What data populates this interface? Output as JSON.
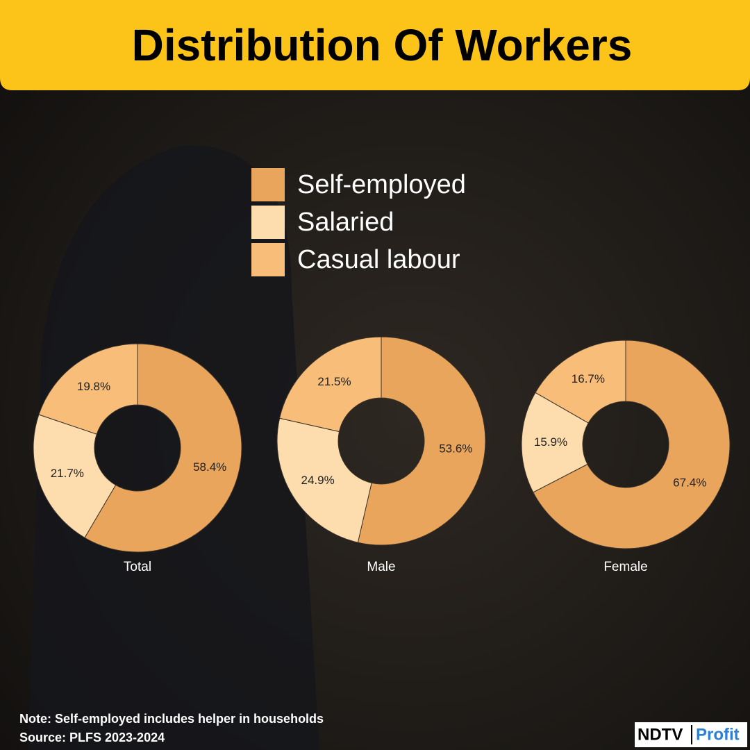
{
  "title": "Distribution Of Workers",
  "legend": [
    {
      "name": "Self-employed",
      "color": "#e9a55c"
    },
    {
      "name": "Salaried",
      "color": "#fddcae"
    },
    {
      "name": "Casual labour",
      "color": "#f7bd79"
    }
  ],
  "chart_data": [
    {
      "type": "pie",
      "title": "Total",
      "values": [
        58.4,
        21.7,
        19.8
      ],
      "value_labels": [
        "58.4%",
        "21.7%",
        "19.8%"
      ]
    },
    {
      "type": "pie",
      "title": "Male",
      "values": [
        53.6,
        24.9,
        21.5
      ],
      "value_labels": [
        "53.6%",
        "24.9%",
        "21.5%"
      ]
    },
    {
      "type": "pie",
      "title": "Female",
      "values": [
        67.4,
        15.9,
        16.7
      ],
      "value_labels": [
        "67.4%",
        "15.9%",
        "16.7%"
      ]
    }
  ],
  "note": "Note: Self-employed includes helper in households",
  "source": "Source: PLFS 2023-2024",
  "logo": {
    "brand": "NDTV",
    "product": "Profit"
  }
}
